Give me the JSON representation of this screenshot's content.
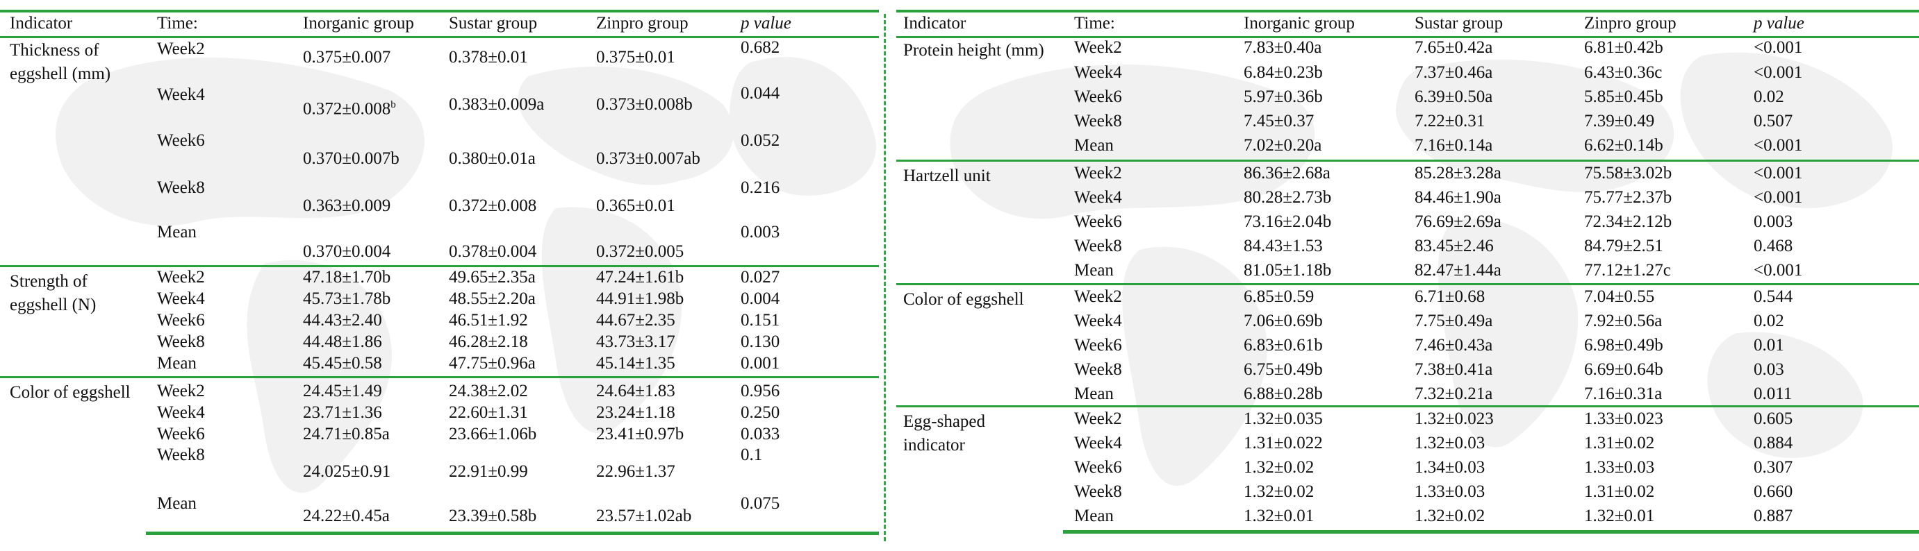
{
  "header": {
    "indicator": "Indicator",
    "time": "Time:",
    "inorganic": "Inorganic group",
    "sustar": "Sustar group",
    "zinpro": "Zinpro group",
    "p": "p value"
  },
  "left": {
    "thickness": {
      "label": "Thickness of eggshell (mm)",
      "rows": [
        {
          "time": "Week2",
          "inorganic": "0.375±0.007",
          "sustar": "0.378±0.01",
          "zinpro": "0.375±0.01",
          "p": "0.682"
        },
        {
          "time": "Week4",
          "inorganic": "0.372±0.008",
          "inorganic_sup": "b",
          "sustar": "0.383±0.009a",
          "zinpro": "0.373±0.008b",
          "p": "0.044"
        },
        {
          "time": "Week6",
          "inorganic": "0.370±0.007b",
          "sustar": "0.380±0.01a",
          "zinpro": "0.373±0.007ab",
          "p": "0.052"
        },
        {
          "time": "Week8",
          "inorganic": "0.363±0.009",
          "sustar": "0.372±0.008",
          "zinpro": "0.365±0.01",
          "p": "0.216"
        },
        {
          "time": "Mean",
          "inorganic": "0.370±0.004",
          "sustar": "0.378±0.004",
          "zinpro": "0.372±0.005",
          "p": "0.003"
        }
      ]
    },
    "strength": {
      "label": "Strength of eggshell (N)",
      "rows": [
        {
          "time": "Week2",
          "inorganic": "47.18±1.70b",
          "sustar": "49.65±2.35a",
          "zinpro": "47.24±1.61b",
          "p": "0.027"
        },
        {
          "time": "Week4",
          "inorganic": "45.73±1.78b",
          "sustar": "48.55±2.20a",
          "zinpro": "44.91±1.98b",
          "p": "0.004"
        },
        {
          "time": "Week6",
          "inorganic": "44.43±2.40",
          "sustar": "46.51±1.92",
          "zinpro": "44.67±2.35",
          "p": "0.151"
        },
        {
          "time": "Week8",
          "inorganic": "44.48±1.86",
          "sustar": "46.28±2.18",
          "zinpro": "43.73±3.17",
          "p": "0.130"
        },
        {
          "time": "Mean",
          "inorganic": "45.45±0.58",
          "sustar": "47.75±0.96a",
          "zinpro": "45.14±1.35",
          "p": "0.001"
        }
      ]
    },
    "color": {
      "label": "Color of eggshell",
      "rows": [
        {
          "time": "Week2",
          "inorganic": "24.45±1.49",
          "sustar": "24.38±2.02",
          "zinpro": "24.64±1.83",
          "p": "0.956"
        },
        {
          "time": "Week4",
          "inorganic": "23.71±1.36",
          "sustar": "22.60±1.31",
          "zinpro": "23.24±1.18",
          "p": "0.250"
        },
        {
          "time": "Week6",
          "inorganic": "24.71±0.85a",
          "sustar": "23.66±1.06b",
          "zinpro": "23.41±0.97b",
          "p": "0.033"
        },
        {
          "time": "Week8",
          "inorganic": "24.025±0.91",
          "sustar": "22.91±0.99",
          "zinpro": "22.96±1.37",
          "p": "0.1"
        },
        {
          "time": "Mean",
          "inorganic": "24.22±0.45a",
          "sustar": "23.39±0.58b",
          "zinpro": "23.57±1.02ab",
          "p": "0.075"
        }
      ]
    }
  },
  "right": {
    "protein": {
      "label": "Protein height (mm)",
      "rows": [
        {
          "time": "Week2",
          "inorganic": "7.83±0.40a",
          "sustar": "7.65±0.42a",
          "zinpro": "6.81±0.42b",
          "p": "<0.001"
        },
        {
          "time": "Week4",
          "inorganic": "6.84±0.23b",
          "sustar": "7.37±0.46a",
          "zinpro": "6.43±0.36c",
          "p": "<0.001"
        },
        {
          "time": "Week6",
          "inorganic": "5.97±0.36b",
          "sustar": "6.39±0.50a",
          "zinpro": "5.85±0.45b",
          "p": "0.02"
        },
        {
          "time": "Week8",
          "inorganic": "7.45±0.37",
          "sustar": "7.22±0.31",
          "zinpro": "7.39±0.49",
          "p": "0.507"
        },
        {
          "time": "Mean",
          "inorganic": "7.02±0.20a",
          "sustar": "7.16±0.14a",
          "zinpro": "6.62±0.14b",
          "p": "<0.001"
        }
      ]
    },
    "hartzell": {
      "label": "Hartzell unit",
      "rows": [
        {
          "time": "Week2",
          "inorganic": "86.36±2.68a",
          "sustar": "85.28±3.28a",
          "zinpro": "75.58±3.02b",
          "p": "<0.001"
        },
        {
          "time": "Week4",
          "inorganic": "80.28±2.73b",
          "sustar": "84.46±1.90a",
          "zinpro": "75.77±2.37b",
          "p": "<0.001"
        },
        {
          "time": "Week6",
          "inorganic": "73.16±2.04b",
          "sustar": "76.69±2.69a",
          "zinpro": "72.34±2.12b",
          "p": "0.003"
        },
        {
          "time": "Week8",
          "inorganic": "84.43±1.53",
          "sustar": "83.45±2.46",
          "zinpro": "84.79±2.51",
          "p": "0.468"
        },
        {
          "time": "Mean",
          "inorganic": "81.05±1.18b",
          "sustar": "82.47±1.44a",
          "zinpro": "77.12±1.27c",
          "p": "<0.001"
        }
      ]
    },
    "color": {
      "label": "Color of eggshell",
      "rows": [
        {
          "time": "Week2",
          "inorganic": "6.85±0.59",
          "sustar": "6.71±0.68",
          "zinpro": "7.04±0.55",
          "p": "0.544"
        },
        {
          "time": "Week4",
          "inorganic": "7.06±0.69b",
          "sustar": "7.75±0.49a",
          "zinpro": "7.92±0.56a",
          "p": "0.02"
        },
        {
          "time": "Week6",
          "inorganic": "6.83±0.61b",
          "sustar": "7.46±0.43a",
          "zinpro": "6.98±0.49b",
          "p": "0.01"
        },
        {
          "time": "Week8",
          "inorganic": "6.75±0.49b",
          "sustar": "7.38±0.41a",
          "zinpro": "6.69±0.64b",
          "p": "0.03"
        },
        {
          "time": "Mean",
          "inorganic": "6.88±0.28b",
          "sustar": "7.32±0.21a",
          "zinpro": "7.16±0.31a",
          "p": "0.011"
        }
      ]
    },
    "eggshape": {
      "label": "Egg-shaped indicator",
      "rows": [
        {
          "time": "Week2",
          "inorganic": "1.32±0.035",
          "sustar": "1.32±0.023",
          "zinpro": "1.33±0.023",
          "p": "0.605"
        },
        {
          "time": "Week4",
          "inorganic": "1.31±0.022",
          "sustar": "1.32±0.03",
          "zinpro": "1.31±0.02",
          "p": "0.884"
        },
        {
          "time": "Week6",
          "inorganic": "1.32±0.02",
          "sustar": "1.34±0.03",
          "zinpro": "1.33±0.03",
          "p": "0.307"
        },
        {
          "time": "Week8",
          "inorganic": "1.32±0.02",
          "sustar": "1.33±0.03",
          "zinpro": "1.31±0.02",
          "p": "0.660"
        },
        {
          "time": "Mean",
          "inorganic": "1.32±0.01",
          "sustar": "1.32±0.02",
          "zinpro": "1.32±0.01",
          "p": "0.887"
        }
      ]
    }
  }
}
